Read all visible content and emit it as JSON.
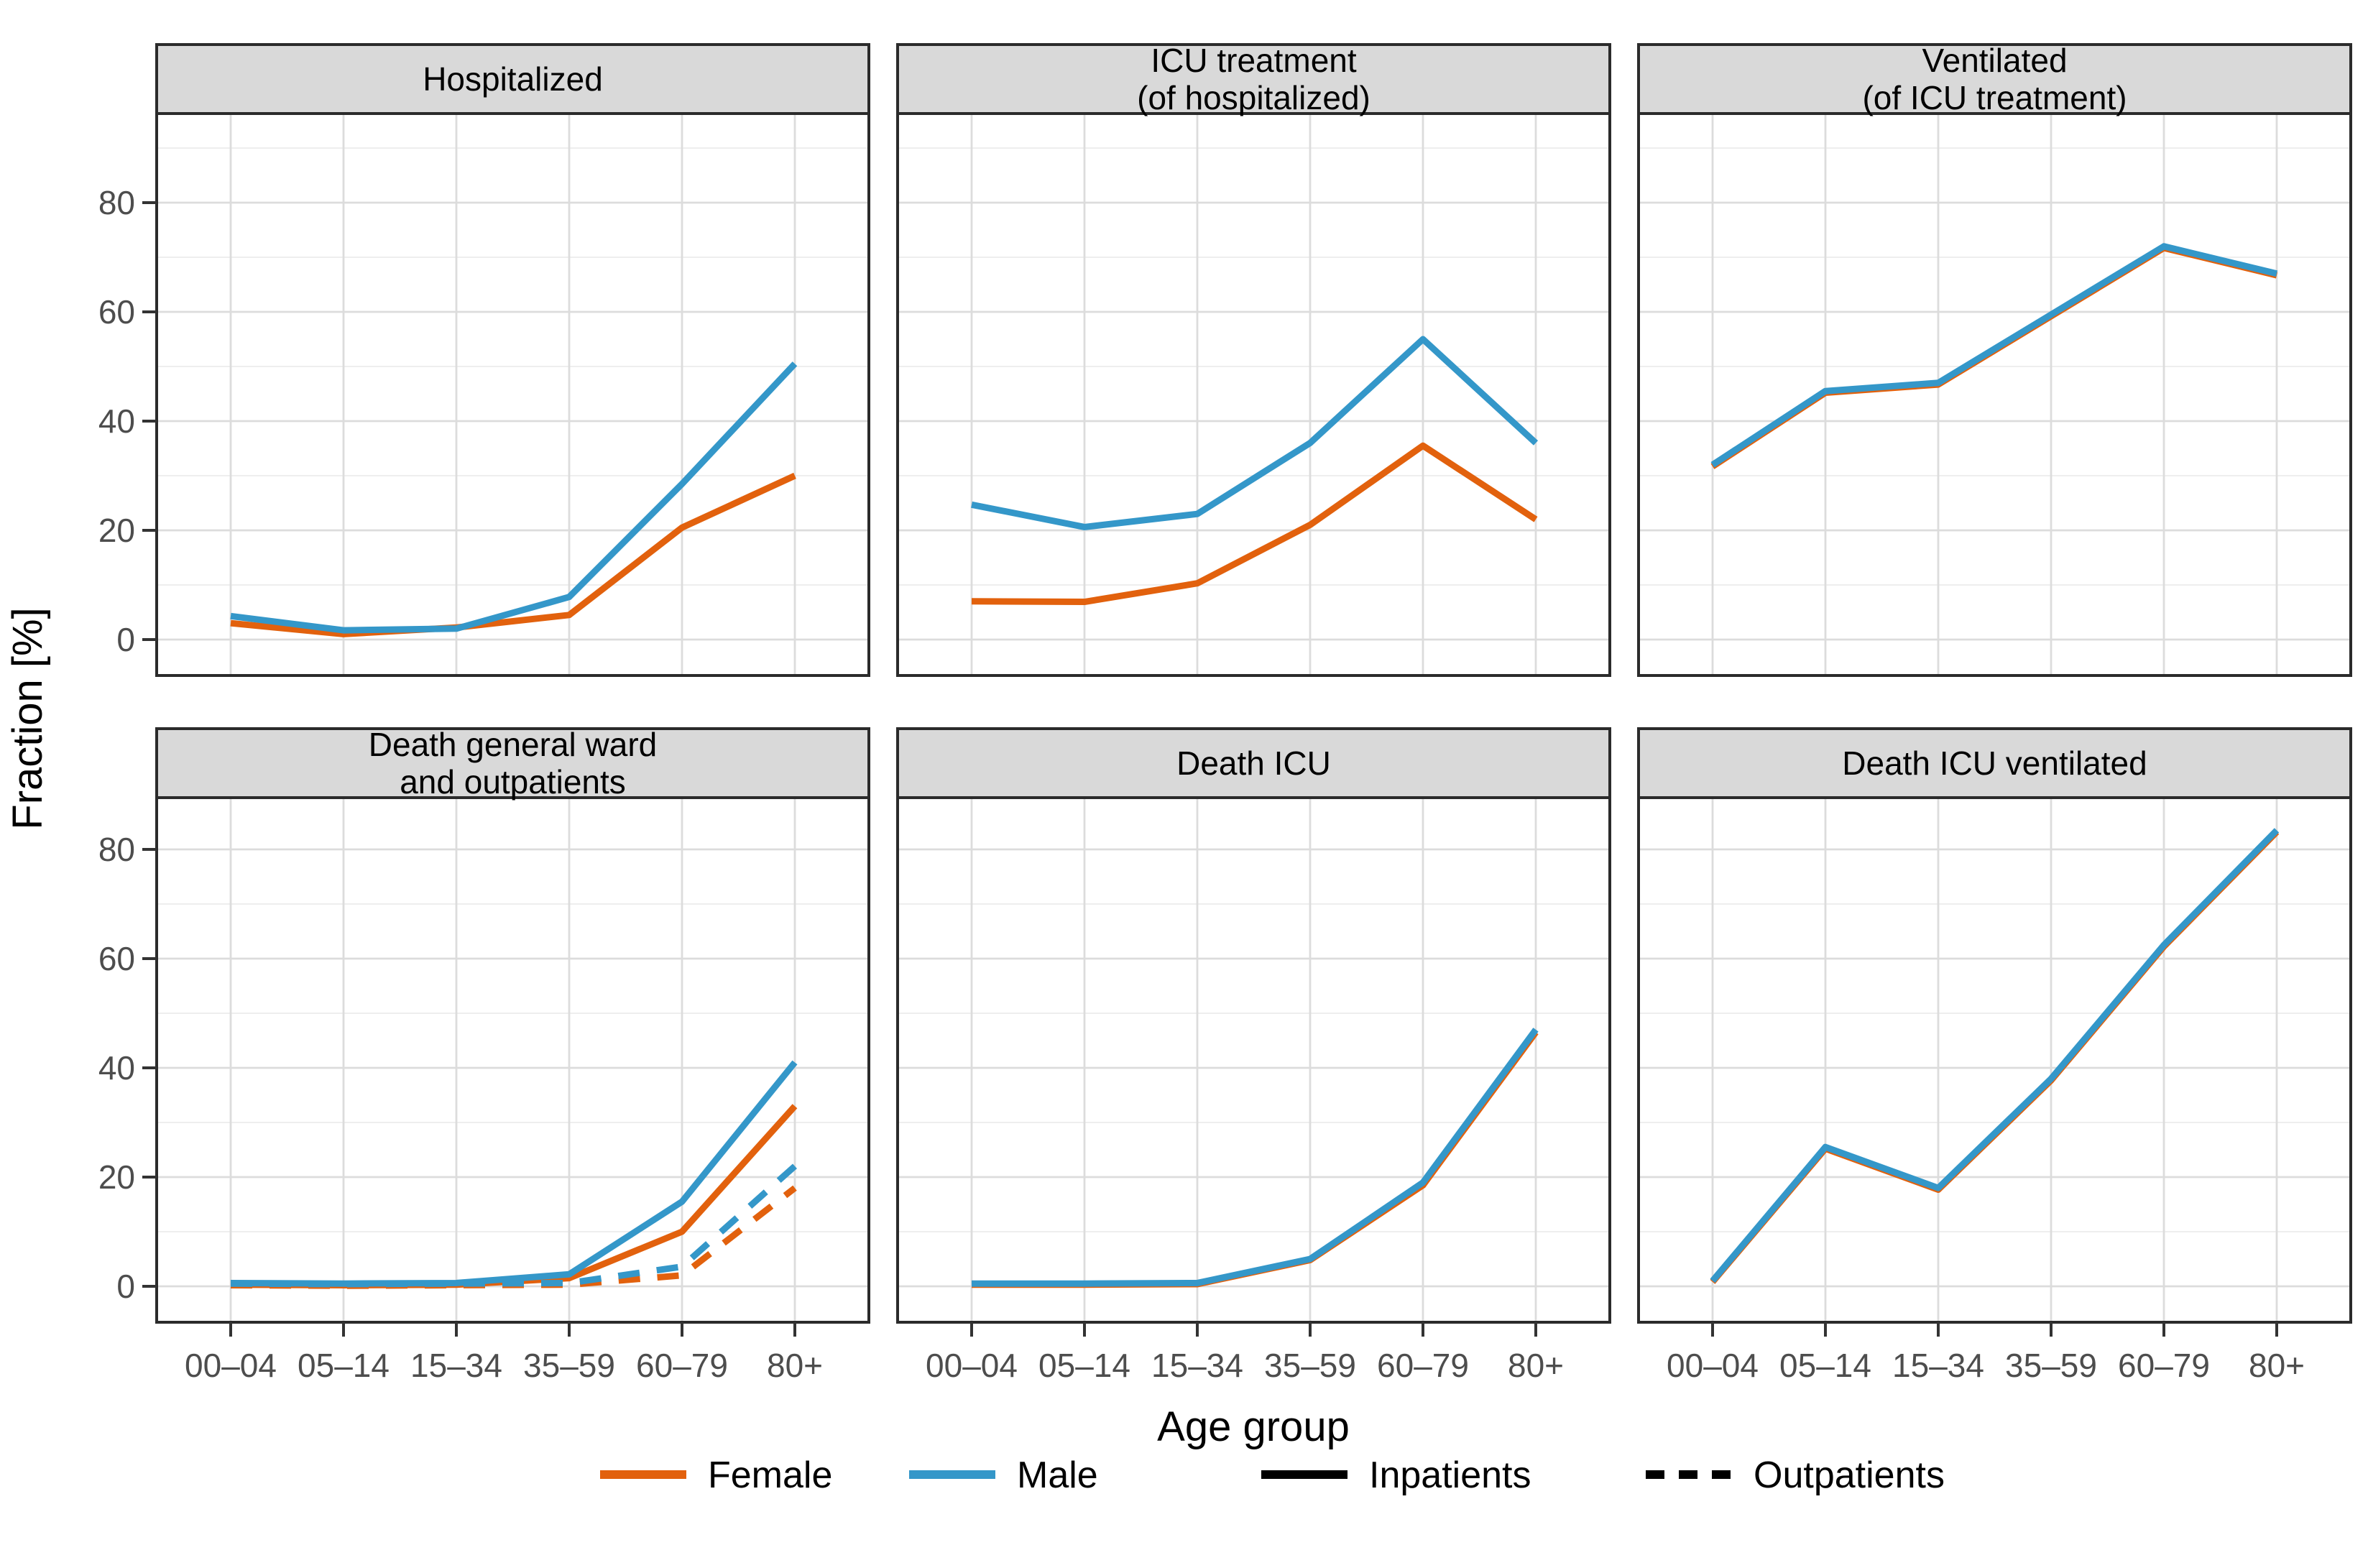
{
  "figure": {
    "y_axis_title": "Fraction [%]",
    "x_axis_title": "Age group",
    "y_tick_labels": [
      "0",
      "20",
      "40",
      "60",
      "80"
    ]
  },
  "colors": {
    "female": "#E2610D",
    "male": "#3497C9",
    "black": "#000000",
    "strip_fill": "#D9D9D9",
    "panel_border": "#2B2B2B",
    "grid_major": "#DCDCDC",
    "grid_minor": "#ECECEC",
    "tick_text": "#4D4D4D"
  },
  "chart_data": {
    "type": "line",
    "categories": [
      "00–04",
      "05–14",
      "15–34",
      "35–59",
      "60–79",
      "80+"
    ],
    "xlabel": "Age group",
    "ylabel": "Fraction [%]",
    "ylim": [
      0,
      90
    ],
    "y_major_ticks": [
      0,
      20,
      40,
      60,
      80
    ],
    "y_minor_ticks": [
      10,
      30,
      50,
      70,
      90
    ],
    "grid": "major+minor",
    "legend_position": "bottom",
    "facets": [
      {
        "title_lines": [
          "Hospitalized"
        ],
        "series": [
          {
            "name": "Female inpatients",
            "color_key": "female",
            "linetype": "solid",
            "values": [
              3,
              1,
              2.2,
              4.5,
              20.5,
              30
            ]
          },
          {
            "name": "Male inpatients",
            "color_key": "male",
            "linetype": "solid",
            "values": [
              4.3,
              1.7,
              2,
              7.8,
              28.5,
              50.5
            ]
          }
        ]
      },
      {
        "title_lines": [
          "ICU treatment",
          "(of hospitalized)"
        ],
        "series": [
          {
            "name": "Female inpatients",
            "color_key": "female",
            "linetype": "solid",
            "values": [
              7,
              6.9,
              10.3,
              21,
              35.5,
              22
            ]
          },
          {
            "name": "Male inpatients",
            "color_key": "male",
            "linetype": "solid",
            "values": [
              24.7,
              20.6,
              23,
              36,
              55,
              36
            ]
          }
        ]
      },
      {
        "title_lines": [
          "Ventilated",
          "(of ICU treatment)"
        ],
        "series": [
          {
            "name": "Female inpatients",
            "color_key": "female",
            "linetype": "solid",
            "values": [
              31.7,
              45.2,
              46.7,
              59.2,
              71.7,
              66.7
            ]
          },
          {
            "name": "Male inpatients",
            "color_key": "male",
            "linetype": "solid",
            "values": [
              32,
              45.5,
              47,
              59.5,
              72,
              67
            ]
          }
        ]
      },
      {
        "title_lines": [
          "Death general ward",
          "and outpatients"
        ],
        "series": [
          {
            "name": "Female inpatients",
            "color_key": "female",
            "linetype": "solid",
            "values": [
              0.3,
              0.2,
              0.3,
              1.5,
              10,
              33
            ]
          },
          {
            "name": "Male inpatients",
            "color_key": "male",
            "linetype": "solid",
            "values": [
              0.6,
              0.5,
              0.6,
              2.2,
              15.5,
              41
            ]
          },
          {
            "name": "Female outpatients",
            "color_key": "female",
            "linetype": "dashed",
            "values": [
              0.2,
              0.1,
              0.2,
              0.3,
              2,
              18
            ]
          },
          {
            "name": "Male outpatients",
            "color_key": "male",
            "linetype": "dashed",
            "values": [
              0.5,
              0.4,
              0.5,
              0.6,
              3.6,
              22
            ]
          }
        ]
      },
      {
        "title_lines": [
          "Death ICU"
        ],
        "series": [
          {
            "name": "Female inpatients",
            "color_key": "female",
            "linetype": "solid",
            "values": [
              0.3,
              0.3,
              0.4,
              4.8,
              18.5,
              46.5
            ]
          },
          {
            "name": "Male inpatients",
            "color_key": "male",
            "linetype": "solid",
            "values": [
              0.5,
              0.5,
              0.6,
              5,
              19,
              47
            ]
          }
        ]
      },
      {
        "title_lines": [
          "Death ICU ventilated"
        ],
        "series": [
          {
            "name": "Female inpatients",
            "color_key": "female",
            "linetype": "solid",
            "values": [
              0.8,
              25.2,
              17.7,
              37.7,
              62.2,
              83.2
            ]
          },
          {
            "name": "Male inpatients",
            "color_key": "male",
            "linetype": "solid",
            "values": [
              1,
              25.5,
              18,
              38,
              62.5,
              83.5
            ]
          }
        ]
      }
    ]
  },
  "legend": {
    "items": [
      {
        "label": "Female",
        "color": "#E2610D",
        "dasharray": "none"
      },
      {
        "label": "Male",
        "color": "#3497C9",
        "dasharray": "none"
      },
      {
        "label": "Inpatients",
        "color": "#000000",
        "dasharray": "none"
      },
      {
        "label": "Outpatients",
        "color": "#000000",
        "dasharray": "26 20"
      }
    ]
  }
}
